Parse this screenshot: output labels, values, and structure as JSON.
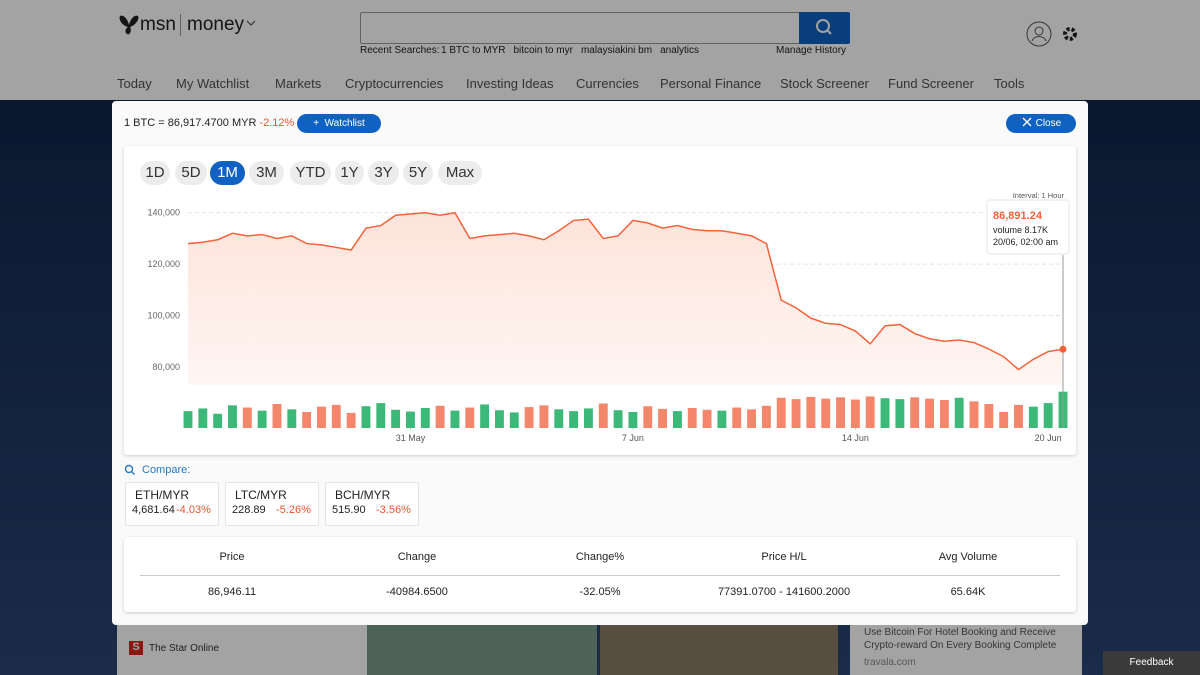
{
  "header": {
    "brand": "msn",
    "section": "money",
    "recent_label": "Recent Searches:",
    "recent": [
      "1 BTC to MYR",
      "bitcoin to myr",
      "malaysiakini bm",
      "analytics"
    ],
    "manage": "Manage History"
  },
  "nav": [
    "Today",
    "My Watchlist",
    "Markets",
    "Cryptocurrencies",
    "Investing Ideas",
    "Currencies",
    "Personal Finance",
    "Stock Screener",
    "Fund Screener",
    "Tools"
  ],
  "modal": {
    "quote": "1 BTC = 86,917.4700 MYR",
    "change": "-2.12%",
    "watchlist": "Watchlist",
    "close": "Close",
    "ranges": [
      "1D",
      "5D",
      "1M",
      "3M",
      "YTD",
      "1Y",
      "3Y",
      "5Y",
      "Max"
    ],
    "selected_range": "1M",
    "compare_label": "Compare:",
    "compare": [
      {
        "symbol": "ETH/MYR",
        "price": "4,681.64",
        "change": "-4.03%"
      },
      {
        "symbol": "LTC/MYR",
        "price": "228.89",
        "change": "-5.26%"
      },
      {
        "symbol": "BCH/MYR",
        "price": "515.90",
        "change": "-3.56%"
      }
    ],
    "stats": {
      "headers": [
        "Price",
        "Change",
        "Change%",
        "Price H/L",
        "Avg Volume"
      ],
      "values": [
        "86,946.11",
        "-40984.6500",
        "-32.05%",
        "77391.0700 - 141600.2000",
        "65.64K"
      ]
    }
  },
  "chart_data": {
    "type": "line",
    "interval": "Interval: 1 Hour",
    "x": [
      0,
      1,
      2,
      3,
      4,
      5,
      6,
      7,
      8,
      9,
      10,
      11,
      12,
      13,
      14,
      15,
      16,
      17,
      18,
      19,
      20,
      21,
      22,
      23,
      24,
      25,
      26,
      27,
      28,
      29,
      30,
      31,
      32,
      33,
      34,
      35,
      36,
      37,
      38,
      39,
      40,
      41,
      42,
      43,
      44,
      45,
      46,
      47,
      48,
      49,
      50,
      51,
      52,
      53,
      54,
      55,
      56,
      57,
      58,
      59
    ],
    "xlim": [
      0,
      59
    ],
    "xticks": [
      {
        "value": 15,
        "label": "31 May"
      },
      {
        "value": 30,
        "label": "7 Jun"
      },
      {
        "value": 45,
        "label": "14 Jun"
      },
      {
        "value": 58,
        "label": "20 Jun"
      }
    ],
    "ylim": [
      73000,
      143000
    ],
    "yticks": [
      {
        "value": 80000,
        "label": "80,000"
      },
      {
        "value": 100000,
        "label": "100,000"
      },
      {
        "value": 120000,
        "label": "120,000"
      },
      {
        "value": 140000,
        "label": "140,000"
      }
    ],
    "y2lim": [
      0,
      9
    ],
    "grid": true,
    "series": [
      {
        "name": "Price",
        "color": "#f4623a",
        "values": [
          128000,
          128500,
          129500,
          132000,
          131000,
          131500,
          130000,
          131000,
          128000,
          127500,
          126500,
          125500,
          134000,
          135000,
          139000,
          139500,
          140000,
          139000,
          140000,
          130000,
          131000,
          131500,
          132000,
          131000,
          129500,
          133000,
          137000,
          137500,
          130000,
          131000,
          137000,
          136000,
          134000,
          135000,
          133500,
          133000,
          133000,
          132000,
          131000,
          128000,
          106000,
          103000,
          99000,
          97000,
          96500,
          94000,
          89000,
          96000,
          96500,
          93000,
          91000,
          90000,
          90500,
          89500,
          87000,
          84000,
          79000,
          83000,
          86000,
          86900
        ]
      },
      {
        "name": "Volume",
        "axis": "y2",
        "up_color": "#3cb878",
        "down_color": "#f4866c",
        "values": [
          3.8,
          4.4,
          3.2,
          5.1,
          4.6,
          3.9,
          5.4,
          4.2,
          3.6,
          4.8,
          5.2,
          3.4,
          4.9,
          5.6,
          4.1,
          3.7,
          4.5,
          5.0,
          3.9,
          4.6,
          5.3,
          4.0,
          3.5,
          4.7,
          5.1,
          4.2,
          3.8,
          4.4,
          5.5,
          4.0,
          3.6,
          4.9,
          4.3,
          3.8,
          4.5,
          4.1,
          3.9,
          4.6,
          4.2,
          5.0,
          6.8,
          6.5,
          7.0,
          6.6,
          6.9,
          6.4,
          7.1,
          6.7,
          6.5,
          6.9,
          6.6,
          6.3,
          6.8,
          6.0,
          5.4,
          3.6,
          5.2,
          4.8,
          5.6,
          8.17
        ]
      }
    ],
    "tooltip": {
      "price": "86,891.24",
      "volume": "volume 8.17K",
      "time": "20/06, 02:00 am"
    }
  },
  "background": {
    "source": "The Star Online",
    "ad_title_1": "Use Bitcoin For Hotel Booking and Receive",
    "ad_title_2": "Crypto-reward On Every Booking Complete",
    "ad_domain": "travala.com",
    "feedback": "Feedback"
  }
}
